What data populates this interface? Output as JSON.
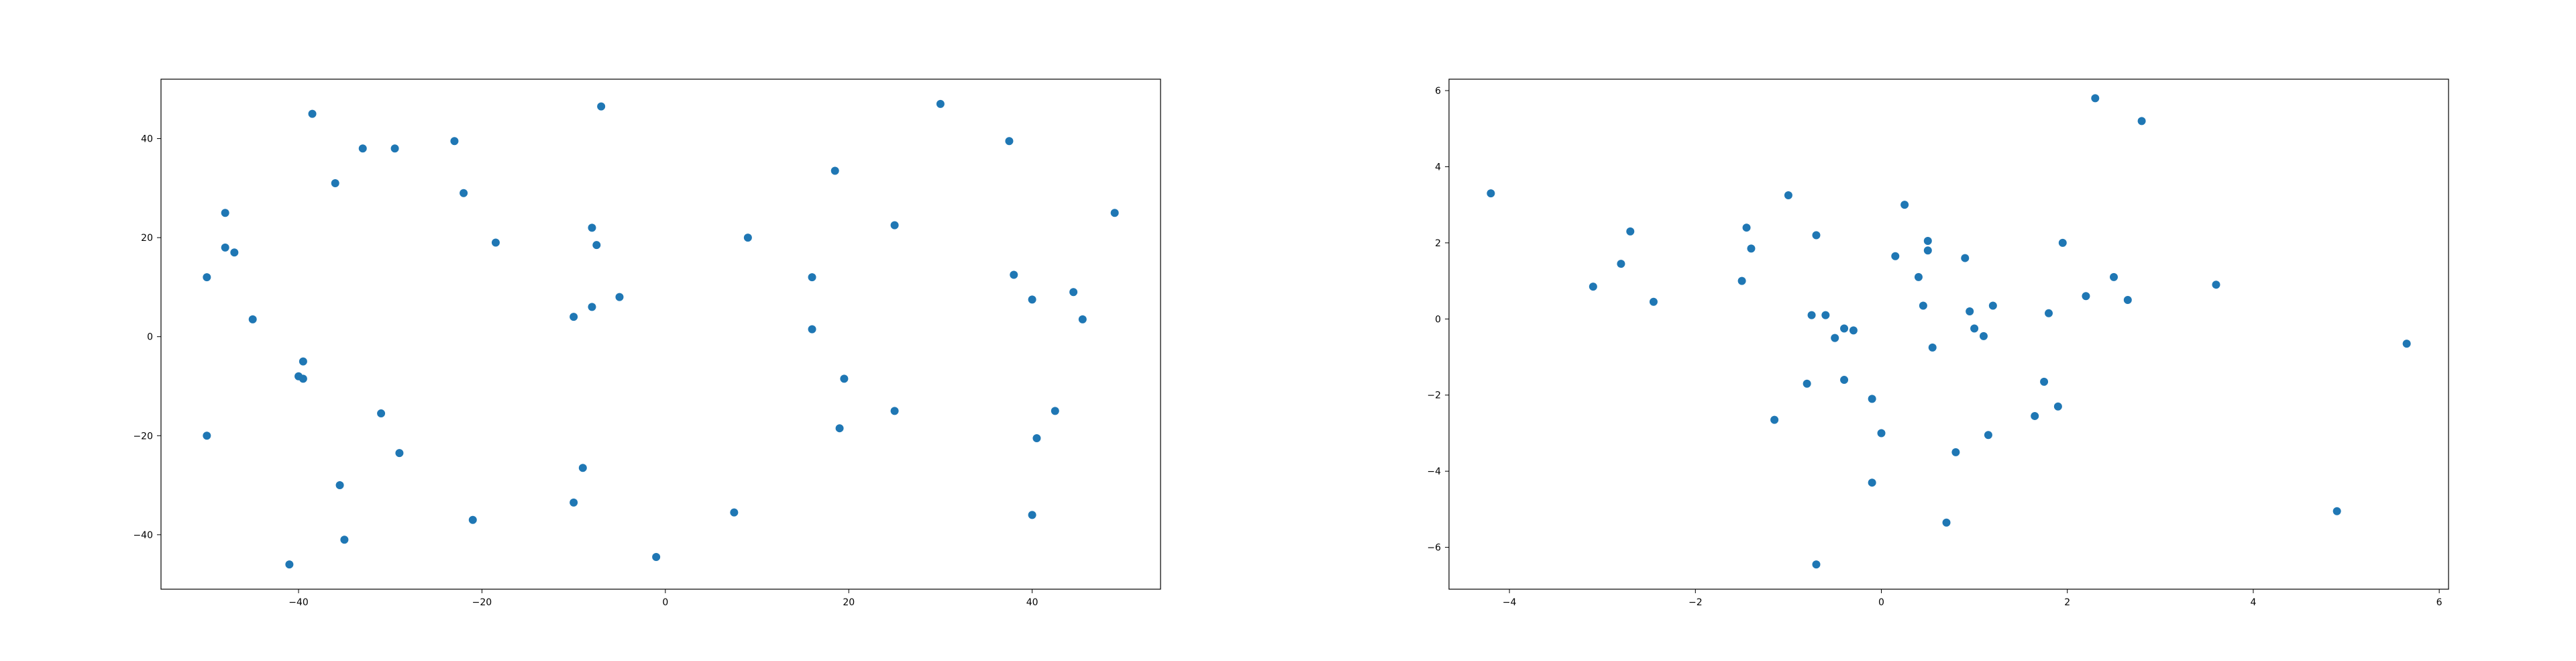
{
  "chart_data": [
    {
      "type": "scatter",
      "title": "",
      "xlabel": "",
      "ylabel": "",
      "xlim": [
        -55,
        54
      ],
      "ylim": [
        -51,
        52
      ],
      "xticks": [
        -40,
        -20,
        0,
        20,
        40
      ],
      "yticks": [
        -40,
        -20,
        0,
        20,
        40
      ],
      "grid": false,
      "marker_color": "#1f77b4",
      "points": [
        {
          "x": -50,
          "y": -20
        },
        {
          "x": -50,
          "y": 12
        },
        {
          "x": -48,
          "y": 25
        },
        {
          "x": -48,
          "y": 18
        },
        {
          "x": -47,
          "y": 17
        },
        {
          "x": -45,
          "y": 3.5
        },
        {
          "x": -41,
          "y": -46
        },
        {
          "x": -40,
          "y": -8
        },
        {
          "x": -39.5,
          "y": -8.5
        },
        {
          "x": -39.5,
          "y": -5
        },
        {
          "x": -38.5,
          "y": 45
        },
        {
          "x": -36,
          "y": 31
        },
        {
          "x": -35.5,
          "y": -30
        },
        {
          "x": -35,
          "y": -41
        },
        {
          "x": -33,
          "y": 38
        },
        {
          "x": -31,
          "y": -15.5
        },
        {
          "x": -29.5,
          "y": 38
        },
        {
          "x": -29,
          "y": -23.5
        },
        {
          "x": -23,
          "y": 39.5
        },
        {
          "x": -22,
          "y": 29
        },
        {
          "x": -21,
          "y": -37
        },
        {
          "x": -18.5,
          "y": 19
        },
        {
          "x": -10,
          "y": 4
        },
        {
          "x": -10,
          "y": -33.5
        },
        {
          "x": -9,
          "y": -26.5
        },
        {
          "x": -8,
          "y": 22
        },
        {
          "x": -8,
          "y": 6
        },
        {
          "x": -7.5,
          "y": 18.5
        },
        {
          "x": -7,
          "y": 46.5
        },
        {
          "x": -5,
          "y": 8
        },
        {
          "x": -1,
          "y": -44.5
        },
        {
          "x": 7.5,
          "y": -35.5
        },
        {
          "x": 9,
          "y": 20
        },
        {
          "x": 16,
          "y": 12
        },
        {
          "x": 16,
          "y": 1.5
        },
        {
          "x": 18.5,
          "y": 33.5
        },
        {
          "x": 19,
          "y": -18.5
        },
        {
          "x": 19.5,
          "y": -8.5
        },
        {
          "x": 25,
          "y": 22.5
        },
        {
          "x": 25,
          "y": -15
        },
        {
          "x": 30,
          "y": 47
        },
        {
          "x": 37.5,
          "y": 39.5
        },
        {
          "x": 38,
          "y": 12.5
        },
        {
          "x": 40,
          "y": 7.5
        },
        {
          "x": 40,
          "y": -36
        },
        {
          "x": 40.5,
          "y": -20.5
        },
        {
          "x": 42.5,
          "y": -15
        },
        {
          "x": 44.5,
          "y": 9
        },
        {
          "x": 45.5,
          "y": 3.5
        },
        {
          "x": 49,
          "y": 25
        }
      ]
    },
    {
      "type": "scatter",
      "title": "",
      "xlabel": "",
      "ylabel": "",
      "xlim": [
        -4.65,
        6.1
      ],
      "ylim": [
        -7.1,
        6.3
      ],
      "xticks": [
        -4,
        -2,
        0,
        2,
        4,
        6
      ],
      "yticks": [
        -6,
        -4,
        -2,
        0,
        2,
        4,
        6
      ],
      "grid": false,
      "marker_color": "#1f77b4",
      "points": [
        {
          "x": -4.2,
          "y": 3.3
        },
        {
          "x": -3.1,
          "y": 0.85
        },
        {
          "x": -2.8,
          "y": 1.45
        },
        {
          "x": -2.7,
          "y": 2.3
        },
        {
          "x": -2.45,
          "y": 0.45
        },
        {
          "x": -1.5,
          "y": 1.0
        },
        {
          "x": -1.45,
          "y": 2.4
        },
        {
          "x": -1.4,
          "y": 1.85
        },
        {
          "x": -1.15,
          "y": -2.65
        },
        {
          "x": -1.0,
          "y": 3.25
        },
        {
          "x": -0.8,
          "y": -1.7
        },
        {
          "x": -0.75,
          "y": 0.1
        },
        {
          "x": -0.7,
          "y": 2.2
        },
        {
          "x": -0.7,
          "y": -6.45
        },
        {
          "x": -0.6,
          "y": 0.1
        },
        {
          "x": -0.5,
          "y": -0.5
        },
        {
          "x": -0.4,
          "y": -0.25
        },
        {
          "x": -0.4,
          "y": -1.6
        },
        {
          "x": -0.3,
          "y": -0.3
        },
        {
          "x": -0.1,
          "y": -2.1
        },
        {
          "x": -0.1,
          "y": -4.3
        },
        {
          "x": 0.0,
          "y": -3.0
        },
        {
          "x": 0.15,
          "y": 1.65
        },
        {
          "x": 0.25,
          "y": 3.0
        },
        {
          "x": 0.4,
          "y": 1.1
        },
        {
          "x": 0.45,
          "y": 0.35
        },
        {
          "x": 0.5,
          "y": 2.05
        },
        {
          "x": 0.5,
          "y": 1.8
        },
        {
          "x": 0.55,
          "y": -0.75
        },
        {
          "x": 0.7,
          "y": -5.35
        },
        {
          "x": 0.8,
          "y": -3.5
        },
        {
          "x": 0.9,
          "y": 1.6
        },
        {
          "x": 0.95,
          "y": 0.2
        },
        {
          "x": 1.0,
          "y": -0.25
        },
        {
          "x": 1.1,
          "y": -0.45
        },
        {
          "x": 1.15,
          "y": -3.05
        },
        {
          "x": 1.2,
          "y": 0.35
        },
        {
          "x": 1.65,
          "y": -2.55
        },
        {
          "x": 1.75,
          "y": -1.65
        },
        {
          "x": 1.8,
          "y": 0.15
        },
        {
          "x": 1.9,
          "y": -2.3
        },
        {
          "x": 1.95,
          "y": 2.0
        },
        {
          "x": 2.2,
          "y": 0.6
        },
        {
          "x": 2.3,
          "y": 5.8
        },
        {
          "x": 2.5,
          "y": 1.1
        },
        {
          "x": 2.65,
          "y": 0.5
        },
        {
          "x": 2.8,
          "y": 5.2
        },
        {
          "x": 3.6,
          "y": 0.9
        },
        {
          "x": 4.9,
          "y": -5.05
        },
        {
          "x": 5.65,
          "y": -0.65
        }
      ]
    }
  ]
}
